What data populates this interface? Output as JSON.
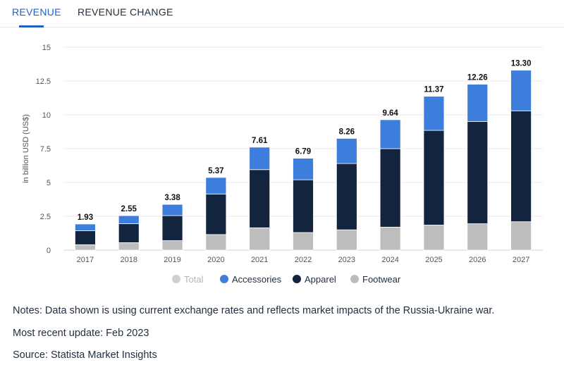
{
  "tabs": {
    "revenue": "REVENUE",
    "revenue_change": "REVENUE CHANGE"
  },
  "legend": {
    "total": "Total",
    "accessories": "Accessories",
    "apparel": "Apparel",
    "footwear": "Footwear"
  },
  "colors": {
    "accessories": "#3d7ddc",
    "apparel": "#13243f",
    "footwear": "#bdbdbd",
    "total_legend": "#cfcfcf",
    "accent": "#1f62c4"
  },
  "notes": {
    "line1": "Notes: Data shown is using current exchange rates and reflects market impacts of the Russia-Ukraine war.",
    "line2": "Most recent update: Feb 2023",
    "line3": "Source: Statista Market Insights"
  },
  "chart_data": {
    "type": "bar",
    "stacked": true,
    "categories": [
      "2017",
      "2018",
      "2019",
      "2020",
      "2021",
      "2022",
      "2023",
      "2024",
      "2025",
      "2026",
      "2027"
    ],
    "series": [
      {
        "name": "Footwear",
        "values": [
          0.4,
          0.55,
          0.7,
          1.15,
          1.65,
          1.3,
          1.5,
          1.7,
          1.85,
          1.95,
          2.1
        ]
      },
      {
        "name": "Apparel",
        "values": [
          1.03,
          1.4,
          1.85,
          3.0,
          4.3,
          3.9,
          4.9,
          5.8,
          7.0,
          7.55,
          8.2
        ]
      },
      {
        "name": "Accessories",
        "values": [
          0.5,
          0.6,
          0.83,
          1.22,
          1.66,
          1.59,
          1.86,
          2.14,
          2.52,
          2.76,
          3.0
        ]
      }
    ],
    "totals": [
      "1.93",
      "2.55",
      "3.38",
      "5.37",
      "7.61",
      "6.79",
      "8.26",
      "9.64",
      "11.37",
      "12.26",
      "13.30"
    ],
    "ylabel": "in billion USD (US$)",
    "yticks": [
      "0",
      "2.5",
      "5",
      "7.5",
      "10",
      "12.5",
      "15"
    ],
    "ylim": [
      0,
      15
    ],
    "grid": true,
    "legend_position": "bottom"
  }
}
